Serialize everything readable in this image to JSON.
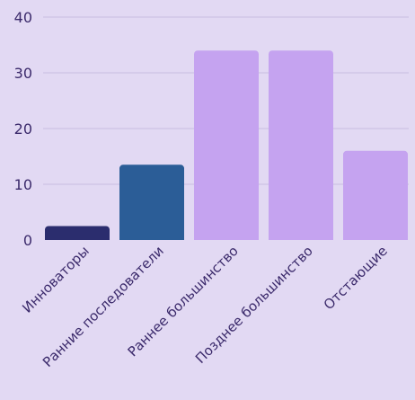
{
  "chart_data": {
    "type": "bar",
    "title": "",
    "xlabel": "",
    "ylabel": "",
    "categories": [
      "Инноваторы",
      "Ранние последователи",
      "Раннее большинство",
      "Позднее большинство",
      "Отстающие"
    ],
    "values": [
      2.5,
      13.5,
      34,
      34,
      16
    ],
    "ylim": [
      0,
      40
    ],
    "yticks": [
      0,
      10,
      20,
      30,
      40
    ],
    "grid": true,
    "legend": "none",
    "colors": [
      "#2b2d6e",
      "#2b5d97",
      "#c5a3f0",
      "#c5a3f0",
      "#c5a3f0"
    ],
    "gridline_color": "#c8bde0",
    "text_color": "#3b2a6b",
    "background": "#e2d9f3"
  }
}
